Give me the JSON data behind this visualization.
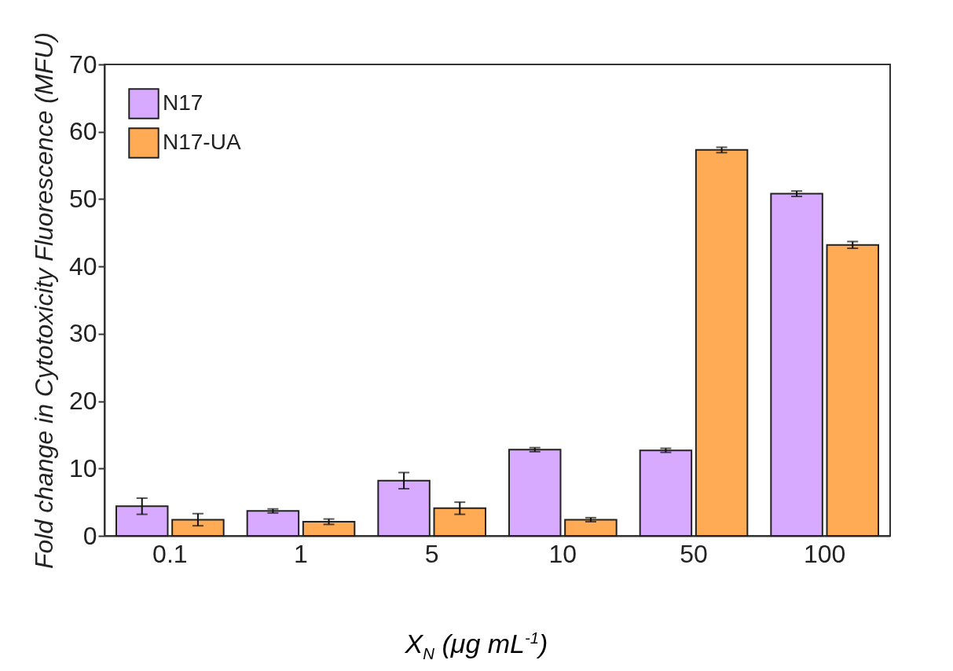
{
  "chart_data": {
    "type": "bar",
    "categories": [
      "0.1",
      "1",
      "5",
      "10",
      "50",
      "100"
    ],
    "series": [
      {
        "name": "N17",
        "color": "#d8aaff",
        "values": [
          4.4,
          3.7,
          8.2,
          12.8,
          12.7,
          50.8
        ],
        "errors": [
          1.2,
          0.3,
          1.2,
          0.3,
          0.3,
          0.4
        ]
      },
      {
        "name": "N17-UA",
        "color": "#ffab55",
        "values": [
          2.4,
          2.1,
          4.1,
          2.4,
          57.3,
          43.2
        ],
        "errors": [
          0.9,
          0.4,
          0.9,
          0.3,
          0.4,
          0.5
        ]
      }
    ],
    "xlabel": "X$_{N}$ (μg mL$^{-1}$)",
    "ylabel": "Fold change in Cytotoxicity Fluorescence (MFU)",
    "ylim": [
      0,
      70
    ],
    "yticks": [
      0,
      10,
      20,
      30,
      40,
      50,
      60,
      70
    ],
    "legend": "top left",
    "grid": false
  }
}
